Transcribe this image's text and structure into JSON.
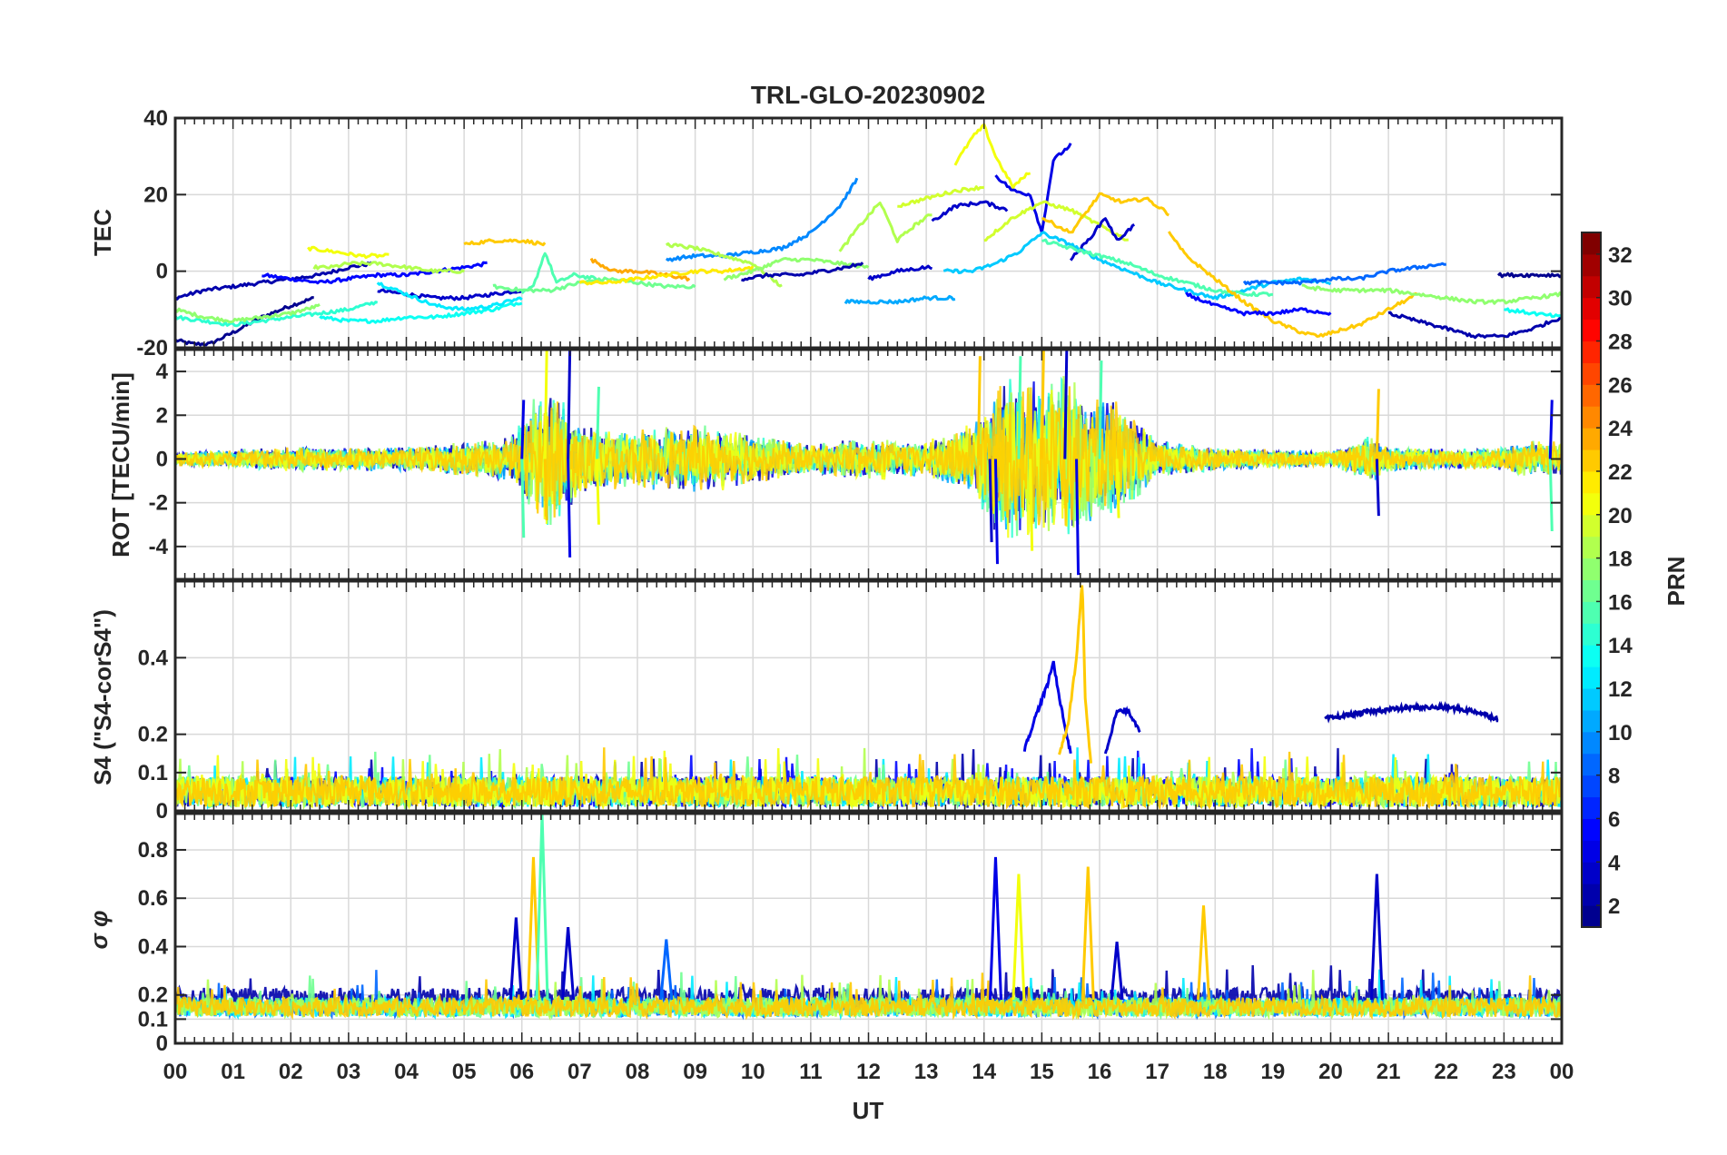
{
  "title": "TRL-GLO-20230902",
  "xlabel": "UT",
  "x_tick_labels": [
    "00",
    "01",
    "02",
    "03",
    "04",
    "05",
    "06",
    "07",
    "08",
    "09",
    "10",
    "11",
    "12",
    "13",
    "14",
    "15",
    "16",
    "17",
    "18",
    "19",
    "20",
    "21",
    "22",
    "23",
    "00"
  ],
  "colorbar": {
    "label": "PRN",
    "range": [
      1,
      32
    ],
    "tick_labels": [
      "2",
      "4",
      "6",
      "8",
      "10",
      "12",
      "14",
      "16",
      "18",
      "20",
      "22",
      "24",
      "26",
      "28",
      "30",
      "32"
    ],
    "colormap": [
      "#00008f",
      "#0000ff",
      "#0080ff",
      "#00ffff",
      "#80ff80",
      "#ffff00",
      "#ff8000",
      "#ff0000",
      "#800000"
    ]
  },
  "chart_data": [
    {
      "type": "line",
      "panel": "TEC",
      "ylabel": "TEC",
      "ylim": [
        -20,
        40
      ],
      "y_ticks": [
        -20,
        0,
        20,
        40
      ],
      "y_tick_labels": [
        "-20",
        "0",
        "20",
        "40"
      ],
      "series": [
        {
          "prn": 1,
          "x": [
            0.0,
            0.3,
            0.6,
            1.0,
            1.5,
            2.0,
            2.4
          ],
          "y": [
            -18,
            -19,
            -19,
            -16,
            -12,
            -9,
            -7
          ]
        },
        {
          "prn": 2,
          "x": [
            0.0,
            0.5,
            1.0,
            1.5,
            2.0,
            2.5,
            3.0,
            3.4
          ],
          "y": [
            -7,
            -5,
            -4,
            -3,
            -2,
            -1,
            1,
            2
          ]
        },
        {
          "prn": 5,
          "x": [
            1.5,
            2.0,
            2.5,
            3.0,
            3.5,
            4.0,
            4.5,
            5.0,
            5.4
          ],
          "y": [
            -1,
            -2,
            -3,
            -2,
            -1,
            -1,
            0,
            1,
            2
          ]
        },
        {
          "prn": 3,
          "x": [
            3.5,
            4.0,
            4.5,
            5.0,
            5.5,
            6.0
          ],
          "y": [
            -5,
            -6,
            -7,
            -7,
            -6,
            -5
          ]
        },
        {
          "prn": 14,
          "x": [
            0.0,
            0.5,
            1.0,
            1.5,
            2.0,
            2.5,
            3.0,
            3.5
          ],
          "y": [
            -12,
            -13,
            -14,
            -13,
            -12,
            -11,
            -10,
            -8
          ]
        },
        {
          "prn": 17,
          "x": [
            0.0,
            0.5,
            1.0,
            1.5,
            2.0,
            2.5
          ],
          "y": [
            -10,
            -12,
            -13,
            -12,
            -11,
            -9
          ]
        },
        {
          "prn": 20,
          "x": [
            2.3,
            2.8,
            3.2,
            3.7
          ],
          "y": [
            6,
            5,
            4,
            4
          ]
        },
        {
          "prn": 18,
          "x": [
            2.4,
            2.7,
            3.0,
            3.5,
            4.0,
            4.5,
            5.0
          ],
          "y": [
            1,
            1,
            2,
            2,
            1,
            0,
            0
          ]
        },
        {
          "prn": 13,
          "x": [
            2.5,
            3.0,
            3.5,
            4.0,
            4.5,
            5.0,
            5.5,
            6.0
          ],
          "y": [
            -12,
            -13,
            -13,
            -12,
            -12,
            -11,
            -10,
            -8
          ]
        },
        {
          "prn": 12,
          "x": [
            3.5,
            4.0,
            4.5,
            5.0,
            5.5,
            6.0
          ],
          "y": [
            -3,
            -6,
            -9,
            -10,
            -9,
            -7
          ]
        },
        {
          "prn": 22,
          "x": [
            5.0,
            5.5,
            6.0,
            6.4
          ],
          "y": [
            7,
            8,
            8,
            7
          ]
        },
        {
          "prn": 15,
          "x": [
            6.0,
            6.2,
            6.4,
            6.6,
            6.9,
            7.3
          ],
          "y": [
            -6,
            -4,
            5,
            -3,
            -1,
            -2
          ]
        },
        {
          "prn": 16,
          "x": [
            5.5,
            6.0,
            6.5,
            7.0,
            7.5,
            8.0,
            8.5,
            9.0
          ],
          "y": [
            -4,
            -5,
            -5,
            -3,
            -2,
            -3,
            -4,
            -4
          ]
        },
        {
          "prn": 23,
          "x": [
            7.2,
            7.6,
            8.0,
            8.5,
            8.9
          ],
          "y": [
            3,
            0,
            0,
            -1,
            -2
          ]
        },
        {
          "prn": 21,
          "x": [
            7.0,
            7.5,
            8.0,
            8.5,
            9.0,
            9.5,
            10.0
          ],
          "y": [
            -3,
            -3,
            -2,
            -1,
            0,
            0,
            1
          ]
        },
        {
          "prn": 9,
          "x": [
            8.5,
            9.0,
            9.5,
            10.0,
            10.5,
            11.0,
            11.5,
            11.8
          ],
          "y": [
            3,
            4,
            4,
            5,
            6,
            10,
            17,
            24
          ]
        },
        {
          "prn": 18,
          "x": [
            8.5,
            9.0,
            9.5,
            10.0,
            10.5
          ],
          "y": [
            7,
            6,
            4,
            2,
            -4
          ]
        },
        {
          "prn": 17,
          "x": [
            9.5,
            10.0,
            10.5,
            11.0,
            11.5,
            12.0
          ],
          "y": [
            -2,
            0,
            3,
            3,
            2,
            1
          ]
        },
        {
          "prn": 2,
          "x": [
            9.8,
            10.3,
            10.8,
            11.2,
            11.6,
            11.9
          ],
          "y": [
            -2,
            -1,
            -1,
            0,
            1,
            2
          ]
        },
        {
          "prn": 3,
          "x": [
            12.0,
            12.5,
            13.0,
            13.1
          ],
          "y": [
            -2,
            0,
            1,
            1
          ]
        },
        {
          "prn": 10,
          "x": [
            11.6,
            12.0,
            12.5,
            13.0,
            13.5
          ],
          "y": [
            -8,
            -8,
            -8,
            -7,
            -7
          ]
        },
        {
          "prn": 18,
          "x": [
            11.5,
            11.8,
            12.2,
            12.5,
            12.8,
            13.1
          ],
          "y": [
            5,
            11,
            18,
            8,
            12,
            15
          ]
        },
        {
          "prn": 19,
          "x": [
            12.5,
            13.0,
            13.5,
            14.0
          ],
          "y": [
            17,
            19,
            21,
            22
          ]
        },
        {
          "prn": 20,
          "x": [
            13.5,
            13.8,
            14.0,
            14.2,
            14.5,
            14.8
          ],
          "y": [
            28,
            35,
            38,
            30,
            22,
            26
          ]
        },
        {
          "prn": 3,
          "x": [
            13.1,
            13.5,
            14.0,
            14.4
          ],
          "y": [
            13,
            17,
            18,
            16
          ]
        },
        {
          "prn": 4,
          "x": [
            14.2,
            14.5,
            14.8,
            15.0,
            15.2,
            15.5
          ],
          "y": [
            25,
            21,
            20,
            10,
            29,
            33
          ]
        },
        {
          "prn": 11,
          "x": [
            13.3,
            13.8,
            14.2,
            14.6,
            15.0,
            15.5,
            16.0,
            16.5,
            17.0,
            17.5,
            18.0,
            18.5,
            19.0,
            19.5,
            20.0
          ],
          "y": [
            0,
            0,
            2,
            5,
            10,
            7,
            3,
            0,
            -3,
            -5,
            -7,
            -5,
            -3,
            -2,
            -3
          ]
        },
        {
          "prn": 19,
          "x": [
            14.0,
            14.5,
            15.0,
            15.5,
            16.0,
            16.5
          ],
          "y": [
            8,
            14,
            18,
            16,
            12,
            8
          ]
        },
        {
          "prn": 22,
          "x": [
            15.0,
            15.5,
            16.0,
            16.4,
            16.8,
            17.2
          ],
          "y": [
            14,
            10,
            20,
            18,
            19,
            15
          ]
        },
        {
          "prn": 3,
          "x": [
            15.5,
            15.8,
            16.1,
            16.3,
            16.6
          ],
          "y": [
            3,
            8,
            14,
            8,
            12
          ]
        },
        {
          "prn": 15,
          "x": [
            15.0,
            15.5,
            16.0,
            16.5,
            17.0,
            17.5,
            18.0,
            18.5,
            19.0
          ],
          "y": [
            8,
            6,
            4,
            2,
            -1,
            -3,
            -5,
            -6,
            -6
          ]
        },
        {
          "prn": 22,
          "x": [
            17.2,
            17.5,
            18.0,
            18.5,
            19.0,
            19.5,
            19.8,
            20.5,
            21.0,
            21.5
          ],
          "y": [
            10,
            4,
            -2,
            -8,
            -13,
            -16,
            -17,
            -14,
            -10,
            -6
          ]
        },
        {
          "prn": 5,
          "x": [
            17.5,
            18.0,
            18.5,
            19.0,
            19.5,
            20.0
          ],
          "y": [
            -6,
            -9,
            -11,
            -11,
            -10,
            -11
          ]
        },
        {
          "prn": 8,
          "x": [
            18.5,
            19.0,
            19.5,
            20.0,
            20.5,
            21.0,
            21.5,
            22.0
          ],
          "y": [
            -3,
            -3,
            -3,
            -2,
            -2,
            0,
            1,
            2
          ]
        },
        {
          "prn": 17,
          "x": [
            19.5,
            20.0,
            20.5,
            21.0,
            21.5,
            22.0,
            22.5,
            23.0,
            23.5,
            24.0
          ],
          "y": [
            -4,
            -5,
            -5,
            -5,
            -6,
            -7,
            -8,
            -8,
            -7,
            -6
          ]
        },
        {
          "prn": 2,
          "x": [
            21.0,
            21.5,
            22.0,
            22.5,
            23.0,
            23.5,
            24.0
          ],
          "y": [
            -11,
            -13,
            -15,
            -17,
            -17,
            -15,
            -12
          ]
        },
        {
          "prn": 1,
          "x": [
            22.9,
            23.3,
            23.7,
            24.0
          ],
          "y": [
            -1,
            -1,
            -1,
            -1
          ]
        },
        {
          "prn": 13,
          "x": [
            23.0,
            23.5,
            24.0
          ],
          "y": [
            -10,
            -11,
            -12
          ]
        }
      ]
    },
    {
      "type": "line",
      "panel": "ROT",
      "ylabel": "ROT [TECU/min]",
      "ylim": [
        -5.5,
        5.0
      ],
      "y_ticks": [
        -4,
        -2,
        0,
        2,
        4
      ],
      "y_tick_labels": [
        "-4",
        "-2",
        "0",
        "2",
        "4"
      ],
      "noise_style": true,
      "envelope": {
        "hours": [
          0,
          2,
          4,
          5.8,
          6.2,
          6.6,
          7,
          8,
          9,
          10,
          11,
          12,
          13,
          13.8,
          14.2,
          14.6,
          15,
          15.4,
          15.8,
          16.3,
          17,
          18,
          19,
          20,
          20.7,
          21,
          22,
          23,
          23.5,
          24
        ],
        "amplitude": [
          0.3,
          0.5,
          0.5,
          0.9,
          2.5,
          3.0,
          1.5,
          1.2,
          1.4,
          1.1,
          0.6,
          0.9,
          0.7,
          1.6,
          3.0,
          3.5,
          3.0,
          3.5,
          2.5,
          2.5,
          0.8,
          0.5,
          0.4,
          0.3,
          1.0,
          0.5,
          0.4,
          0.5,
          0.8,
          0.7
        ]
      },
      "highlights": [
        {
          "x": 6.0,
          "y": 2.7
        },
        {
          "x": 6.0,
          "y": -3.6
        },
        {
          "x": 6.4,
          "y": 5.0
        },
        {
          "x": 6.4,
          "y": -2.8
        },
        {
          "x": 6.8,
          "y": 5.0
        },
        {
          "x": 6.8,
          "y": -4.5
        },
        {
          "x": 7.3,
          "y": 3.3
        },
        {
          "x": 7.3,
          "y": -3.0
        },
        {
          "x": 13.9,
          "y": 4.7
        },
        {
          "x": 14.1,
          "y": -3.8
        },
        {
          "x": 14.2,
          "y": -4.8
        },
        {
          "x": 14.6,
          "y": 4.7
        },
        {
          "x": 14.8,
          "y": -4.2
        },
        {
          "x": 15.0,
          "y": 5.0
        },
        {
          "x": 15.4,
          "y": 5.0
        },
        {
          "x": 15.6,
          "y": -5.3
        },
        {
          "x": 16.0,
          "y": 4.5
        },
        {
          "x": 16.3,
          "y": -2.7
        },
        {
          "x": 20.8,
          "y": 3.2
        },
        {
          "x": 20.8,
          "y": -2.6
        },
        {
          "x": 23.8,
          "y": 2.7
        },
        {
          "x": 23.8,
          "y": -3.3
        }
      ]
    },
    {
      "type": "line",
      "panel": "S4",
      "ylabel": "S4 (\"S4-corS4\")",
      "ylim": [
        0,
        0.6
      ],
      "y_ticks": [
        0,
        0.1,
        0.2,
        0.4
      ],
      "y_tick_labels": [
        "0",
        "0.1",
        "0.2",
        "0.4"
      ],
      "noise_style": true,
      "baseline": 0.05,
      "arcs": [
        {
          "prn": 2,
          "x": [
            19.9,
            20.5,
            21.0,
            21.5,
            22.0,
            22.5,
            22.9
          ],
          "y": [
            0.24,
            0.255,
            0.265,
            0.27,
            0.27,
            0.26,
            0.24
          ]
        },
        {
          "prn": 4,
          "x": [
            14.7,
            14.9,
            15.1,
            15.2,
            15.3,
            15.4,
            15.5
          ],
          "y": [
            0.16,
            0.25,
            0.33,
            0.39,
            0.3,
            0.22,
            0.15
          ]
        },
        {
          "prn": 22,
          "x": [
            15.3,
            15.45,
            15.6,
            15.7,
            15.75,
            15.85
          ],
          "y": [
            0.15,
            0.22,
            0.4,
            0.6,
            0.3,
            0.12
          ]
        },
        {
          "prn": 3,
          "x": [
            16.1,
            16.3,
            16.5,
            16.7
          ],
          "y": [
            0.15,
            0.26,
            0.26,
            0.21
          ]
        }
      ]
    },
    {
      "type": "line",
      "panel": "sigma_phi",
      "ylabel": "σ φ",
      "ylim": [
        0,
        0.95
      ],
      "y_ticks": [
        0,
        0.1,
        0.2,
        0.4,
        0.6,
        0.8
      ],
      "y_tick_labels": [
        "0",
        "0.1",
        "0.2",
        "0.4",
        "0.6",
        "0.8"
      ],
      "noise_style": true,
      "baseline": 0.15,
      "spikes": [
        {
          "prn": 22,
          "x": 6.2,
          "y": 0.77
        },
        {
          "prn": 15,
          "x": 6.35,
          "y": 0.95
        },
        {
          "prn": 3,
          "x": 5.9,
          "y": 0.52
        },
        {
          "prn": 3,
          "x": 6.8,
          "y": 0.48
        },
        {
          "prn": 4,
          "x": 14.2,
          "y": 0.77
        },
        {
          "prn": 20,
          "x": 14.6,
          "y": 0.7
        },
        {
          "prn": 22,
          "x": 15.8,
          "y": 0.73
        },
        {
          "prn": 22,
          "x": 17.8,
          "y": 0.57
        },
        {
          "prn": 3,
          "x": 20.8,
          "y": 0.7
        },
        {
          "prn": 8,
          "x": 8.5,
          "y": 0.43
        },
        {
          "prn": 3,
          "x": 16.3,
          "y": 0.42
        }
      ]
    }
  ]
}
